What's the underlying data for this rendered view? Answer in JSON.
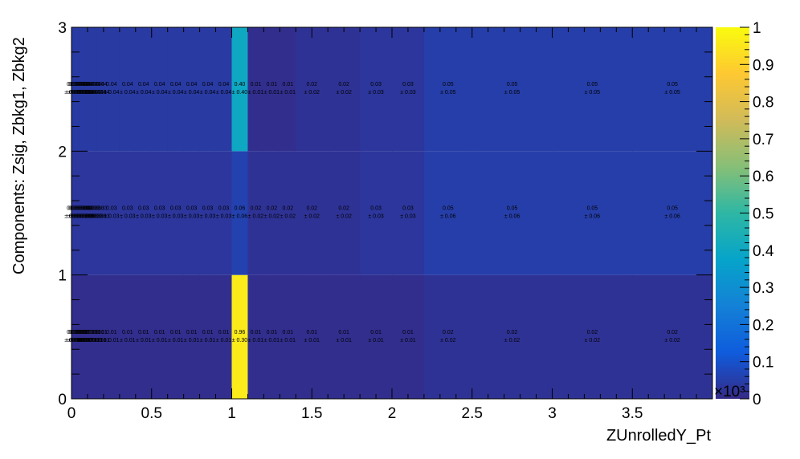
{
  "chart_data": {
    "type": "heatmap",
    "title": "",
    "xlabel": "ZUnrolledY_Pt",
    "ylabel": "Components: Zsig, Zbkg1, Zbkg2",
    "xlim": [
      0,
      4
    ],
    "ylim": [
      0,
      3
    ],
    "x_multiplier": "×10³",
    "x_ticks": [
      "0",
      "0.5",
      "1",
      "1.5",
      "2",
      "2.5",
      "3",
      "3.5"
    ],
    "y_ticks": [
      "0",
      "1",
      "2",
      "3"
    ],
    "colorbar": {
      "range": [
        0,
        1
      ],
      "ticks": [
        "0",
        "0.1",
        "0.2",
        "0.3",
        "0.4",
        "0.5",
        "0.6",
        "0.7",
        "0.8",
        "0.9",
        "1"
      ],
      "palette": [
        "#352a87",
        "#0f5cdd",
        "#1481d6",
        "#06a4ca",
        "#2eb7a4",
        "#87bf77",
        "#d1bb59",
        "#fec832",
        "#f9fb0e"
      ]
    },
    "x_bins": [
      0,
      0.01,
      0.02,
      0.03,
      0.04,
      0.05,
      0.06,
      0.07,
      0.08,
      0.09,
      0.1,
      0.12,
      0.14,
      0.16,
      0.18,
      0.2,
      0.3,
      0.4,
      0.5,
      0.6,
      0.7,
      0.8,
      0.9,
      1.0,
      1.1,
      1.2,
      1.3,
      1.4,
      1.6,
      1.8,
      2.0,
      2.2,
      2.5,
      3.0,
      3.5,
      4.0
    ],
    "rows": [
      {
        "name": "Zsig",
        "values": [
          0.01,
          0.01,
          0.01,
          0.01,
          0.01,
          0.01,
          0.01,
          0.01,
          0.01,
          0.01,
          0.01,
          0.01,
          0.01,
          0.01,
          0.01,
          0.01,
          0.01,
          0.01,
          0.01,
          0.01,
          0.01,
          0.01,
          0.01,
          0.96,
          0.01,
          0.01,
          0.01,
          0.01,
          0.01,
          0.01,
          0.01,
          0.02,
          0.02,
          0.02,
          0.02
        ],
        "errors": [
          0.01,
          0.01,
          0.01,
          0.01,
          0.01,
          0.01,
          0.01,
          0.01,
          0.01,
          0.01,
          0.01,
          0.01,
          0.01,
          0.01,
          0.01,
          0.01,
          0.01,
          0.01,
          0.01,
          0.01,
          0.01,
          0.01,
          0.01,
          0.3,
          0.01,
          0.01,
          0.01,
          0.01,
          0.01,
          0.01,
          0.01,
          0.02,
          0.02,
          0.02,
          0.02
        ]
      },
      {
        "name": "Zbkg1",
        "values": [
          0.03,
          0.03,
          0.03,
          0.03,
          0.03,
          0.03,
          0.03,
          0.03,
          0.03,
          0.03,
          0.03,
          0.03,
          0.03,
          0.03,
          0.03,
          0.03,
          0.03,
          0.03,
          0.03,
          0.03,
          0.03,
          0.03,
          0.03,
          0.06,
          0.02,
          0.02,
          0.02,
          0.02,
          0.02,
          0.03,
          0.03,
          0.05,
          0.05,
          0.05,
          0.05
        ],
        "errors": [
          0.03,
          0.03,
          0.03,
          0.03,
          0.03,
          0.03,
          0.03,
          0.03,
          0.03,
          0.03,
          0.03,
          0.03,
          0.03,
          0.03,
          0.03,
          0.03,
          0.03,
          0.03,
          0.03,
          0.03,
          0.03,
          0.03,
          0.03,
          0.06,
          0.02,
          0.02,
          0.02,
          0.02,
          0.02,
          0.03,
          0.03,
          0.06,
          0.06,
          0.06,
          0.06
        ]
      },
      {
        "name": "Zbkg2",
        "values": [
          0.04,
          0.04,
          0.04,
          0.04,
          0.04,
          0.04,
          0.04,
          0.04,
          0.04,
          0.04,
          0.04,
          0.04,
          0.04,
          0.04,
          0.04,
          0.04,
          0.04,
          0.04,
          0.04,
          0.04,
          0.04,
          0.04,
          0.04,
          0.4,
          0.01,
          0.01,
          0.01,
          0.02,
          0.02,
          0.03,
          0.03,
          0.05,
          0.05,
          0.05,
          0.05
        ],
        "errors": [
          0.04,
          0.04,
          0.04,
          0.04,
          0.04,
          0.04,
          0.04,
          0.04,
          0.04,
          0.04,
          0.04,
          0.04,
          0.04,
          0.04,
          0.04,
          0.04,
          0.04,
          0.04,
          0.04,
          0.04,
          0.04,
          0.04,
          0.04,
          0.4,
          0.01,
          0.01,
          0.01,
          0.02,
          0.02,
          0.03,
          0.03,
          0.05,
          0.05,
          0.05,
          0.05
        ]
      }
    ]
  }
}
